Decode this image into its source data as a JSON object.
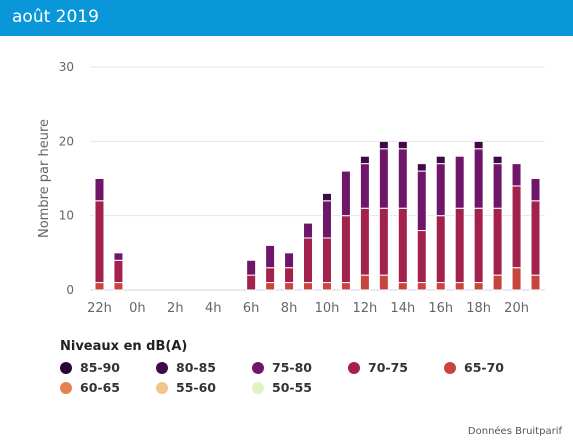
{
  "header": {
    "title": "août 2019"
  },
  "chart_data": {
    "type": "bar",
    "stacked": true,
    "ylabel": "Nombre par heure",
    "ylim": [
      0,
      30
    ],
    "yticks": [
      0,
      10,
      20,
      30
    ],
    "grid": true,
    "hours": [
      "22h",
      "23h",
      "0h",
      "1h",
      "2h",
      "3h",
      "4h",
      "5h",
      "6h",
      "7h",
      "8h",
      "9h",
      "10h",
      "11h",
      "12h",
      "13h",
      "14h",
      "15h",
      "16h",
      "17h",
      "18h",
      "19h",
      "20h",
      "21h"
    ],
    "xtick_labels": [
      "22h",
      "0h",
      "2h",
      "4h",
      "6h",
      "8h",
      "10h",
      "12h",
      "14h",
      "16h",
      "18h",
      "20h"
    ],
    "series": [
      {
        "name": "65-70",
        "color": "#c8453e",
        "values": [
          1,
          1,
          0,
          0,
          0,
          0,
          0,
          0,
          0,
          1,
          1,
          1,
          1,
          1,
          2,
          2,
          1,
          1,
          1,
          1,
          1,
          2,
          3,
          2
        ]
      },
      {
        "name": "70-75",
        "color": "#a2214d",
        "values": [
          11,
          3,
          0,
          0,
          0,
          0,
          0,
          0,
          2,
          2,
          2,
          6,
          6,
          9,
          9,
          9,
          10,
          7,
          9,
          10,
          10,
          9,
          11,
          10
        ]
      },
      {
        "name": "75-80",
        "color": "#6f166b",
        "values": [
          3,
          1,
          0,
          0,
          0,
          0,
          0,
          0,
          2,
          3,
          2,
          2,
          5,
          6,
          6,
          8,
          8,
          8,
          7,
          7,
          8,
          6,
          3,
          3
        ]
      },
      {
        "name": "80-85",
        "color": "#3e0a48",
        "values": [
          0,
          0,
          0,
          0,
          0,
          0,
          0,
          0,
          0,
          0,
          0,
          0,
          1,
          0,
          1,
          1,
          1,
          1,
          1,
          0,
          1,
          1,
          0,
          0
        ]
      },
      {
        "name": "85-90",
        "color": "#2a0636",
        "values": [
          0,
          0,
          0,
          0,
          0,
          0,
          0,
          0,
          0,
          0,
          0,
          0,
          0,
          0,
          0,
          0,
          0,
          0,
          0,
          0,
          0,
          0,
          0,
          0
        ]
      },
      {
        "name": "60-65",
        "color": "#e8804f",
        "values": [
          0,
          0,
          0,
          0,
          0,
          0,
          0,
          0,
          0,
          0,
          0,
          0,
          0,
          0,
          0,
          0,
          0,
          0,
          0,
          0,
          0,
          0,
          0,
          0
        ]
      },
      {
        "name": "55-60",
        "color": "#f0c48a",
        "values": [
          0,
          0,
          0,
          0,
          0,
          0,
          0,
          0,
          0,
          0,
          0,
          0,
          0,
          0,
          0,
          0,
          0,
          0,
          0,
          0,
          0,
          0,
          0,
          0
        ]
      },
      {
        "name": "50-55",
        "color": "#dff2c4",
        "values": [
          0,
          0,
          0,
          0,
          0,
          0,
          0,
          0,
          0,
          0,
          0,
          0,
          0,
          0,
          0,
          0,
          0,
          0,
          0,
          0,
          0,
          0,
          0,
          0
        ]
      }
    ]
  },
  "legend": {
    "title": "Niveaux en dB(A)",
    "items": [
      {
        "label": "85-90",
        "color": "#2a0636"
      },
      {
        "label": "80-85",
        "color": "#3e0a48"
      },
      {
        "label": "75-80",
        "color": "#6f166b"
      },
      {
        "label": "70-75",
        "color": "#a2214d"
      },
      {
        "label": "65-70",
        "color": "#c8453e"
      },
      {
        "label": "60-65",
        "color": "#e8804f"
      },
      {
        "label": "55-60",
        "color": "#f0c48a"
      },
      {
        "label": "50-55",
        "color": "#dff2c4"
      }
    ]
  },
  "credits": "Données Bruitparif"
}
